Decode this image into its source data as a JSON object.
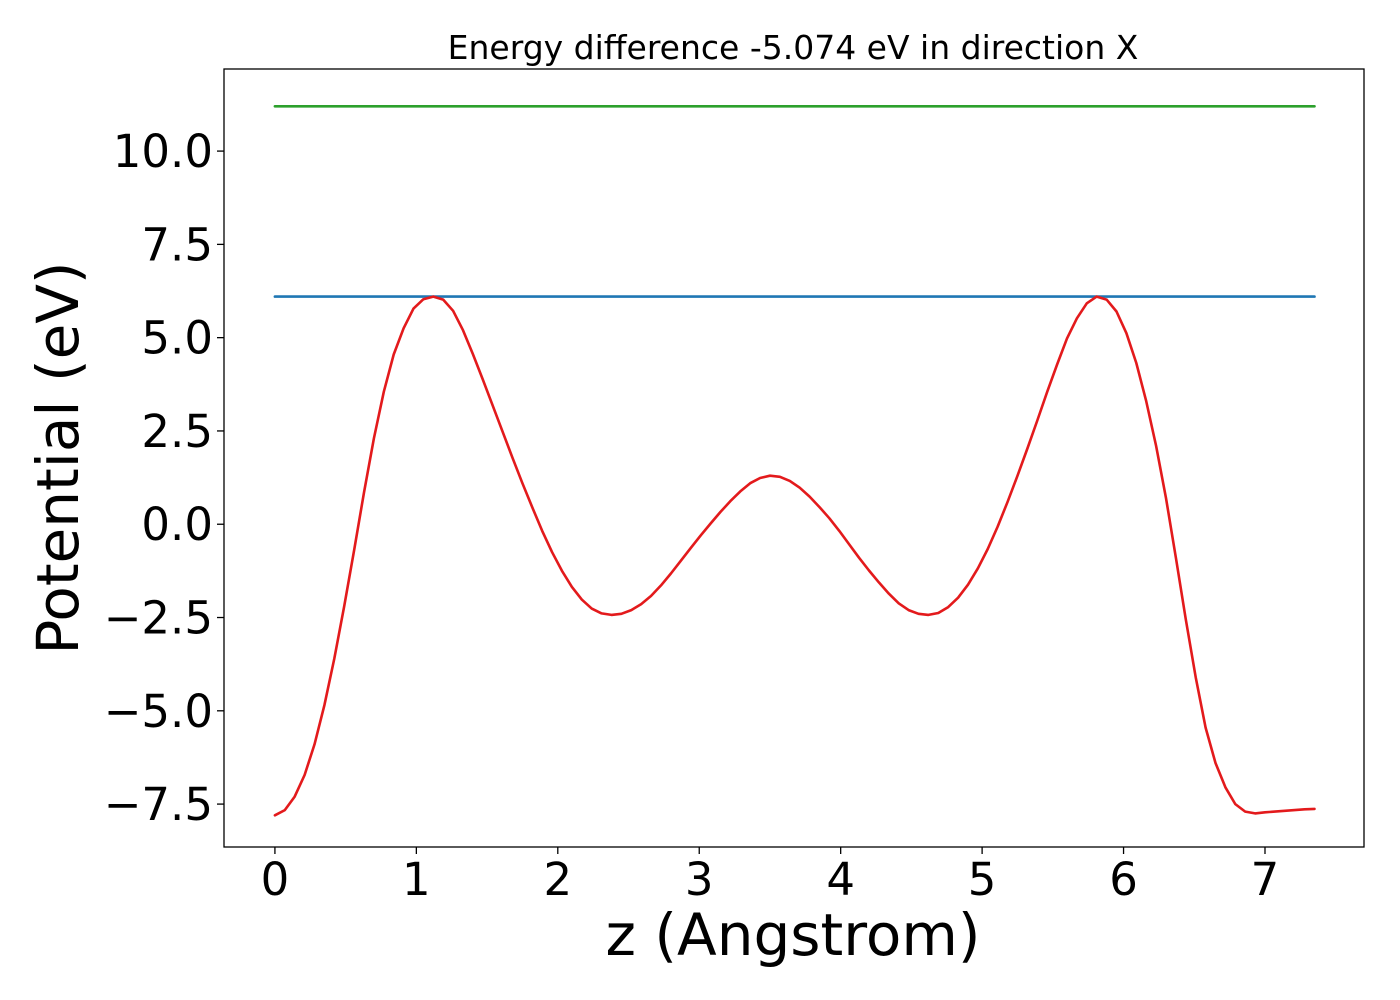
{
  "chart_data": {
    "type": "line",
    "title": "Energy difference -5.074 eV in direction X",
    "xlabel": "z (Angstrom)",
    "ylabel": "Potential (eV)",
    "xlim": [
      -0.36,
      7.7
    ],
    "ylim": [
      -8.65,
      12.2
    ],
    "x_ticks": [
      0,
      1,
      2,
      3,
      4,
      5,
      6,
      7
    ],
    "x_tick_labels": [
      "0",
      "1",
      "2",
      "3",
      "4",
      "5",
      "6",
      "7"
    ],
    "y_ticks": [
      -7.5,
      -5.0,
      -2.5,
      0.0,
      2.5,
      5.0,
      7.5,
      10.0
    ],
    "y_tick_labels": [
      "−7.5",
      "−5.0",
      "−2.5",
      "0.0",
      "2.5",
      "5.0",
      "7.5",
      "10.0"
    ],
    "grid": false,
    "series": [
      {
        "color": "#2ca02c",
        "x": [
          0,
          7.35
        ],
        "y": [
          11.2,
          11.2
        ]
      },
      {
        "color": "#1f77b4",
        "x": [
          0,
          7.35
        ],
        "y": [
          6.1,
          6.1
        ]
      },
      {
        "color": "#e31a1c",
        "x": [
          0,
          0.07,
          0.14,
          0.21,
          0.28,
          0.35,
          0.42,
          0.49,
          0.56,
          0.63,
          0.7,
          0.77,
          0.84,
          0.91,
          0.98,
          1.05,
          1.12,
          1.19,
          1.26,
          1.33,
          1.4,
          1.47,
          1.54,
          1.61,
          1.68,
          1.75,
          1.82,
          1.89,
          1.96,
          2.03,
          2.1,
          2.17,
          2.24,
          2.31,
          2.38,
          2.45,
          2.52,
          2.59,
          2.66,
          2.73,
          2.8,
          2.87,
          2.94,
          3.01,
          3.08,
          3.15,
          3.22,
          3.29,
          3.36,
          3.43,
          3.5,
          3.57,
          3.64,
          3.71,
          3.78,
          3.85,
          3.92,
          3.99,
          4.06,
          4.13,
          4.2,
          4.27,
          4.34,
          4.41,
          4.48,
          4.55,
          4.62,
          4.69,
          4.76,
          4.83,
          4.9,
          4.97,
          5.04,
          5.11,
          5.18,
          5.25,
          5.32,
          5.39,
          5.46,
          5.53,
          5.6,
          5.67,
          5.74,
          5.81,
          5.88,
          5.95,
          6.02,
          6.09,
          6.16,
          6.23,
          6.3,
          6.37,
          6.44,
          6.51,
          6.58,
          6.65,
          6.72,
          6.79,
          6.86,
          6.93,
          7.0,
          7.07,
          7.14,
          7.21,
          7.28,
          7.35
        ],
        "y": [
          -7.8,
          -7.66,
          -7.3,
          -6.72,
          -5.9,
          -4.85,
          -3.6,
          -2.2,
          -0.7,
          0.85,
          2.3,
          3.55,
          4.55,
          5.25,
          5.78,
          6.03,
          6.1,
          6.02,
          5.72,
          5.2,
          4.56,
          3.88,
          3.18,
          2.48,
          1.78,
          1.1,
          0.45,
          -0.18,
          -0.75,
          -1.25,
          -1.68,
          -2.02,
          -2.26,
          -2.39,
          -2.43,
          -2.4,
          -2.3,
          -2.14,
          -1.92,
          -1.64,
          -1.32,
          -0.98,
          -0.64,
          -0.3,
          0.02,
          0.33,
          0.62,
          0.88,
          1.1,
          1.24,
          1.3,
          1.27,
          1.16,
          0.98,
          0.74,
          0.46,
          0.16,
          -0.18,
          -0.54,
          -0.9,
          -1.24,
          -1.56,
          -1.86,
          -2.12,
          -2.3,
          -2.4,
          -2.43,
          -2.38,
          -2.22,
          -1.97,
          -1.62,
          -1.18,
          -0.66,
          -0.06,
          0.6,
          1.3,
          2.03,
          2.78,
          3.55,
          4.28,
          4.98,
          5.52,
          5.92,
          6.1,
          6.02,
          5.7,
          5.12,
          4.32,
          3.3,
          2.1,
          0.7,
          -0.9,
          -2.55,
          -4.1,
          -5.45,
          -6.4,
          -7.05,
          -7.5,
          -7.7,
          -7.75,
          -7.72,
          -7.7,
          -7.68,
          -7.66,
          -7.64,
          -7.63
        ]
      }
    ]
  }
}
